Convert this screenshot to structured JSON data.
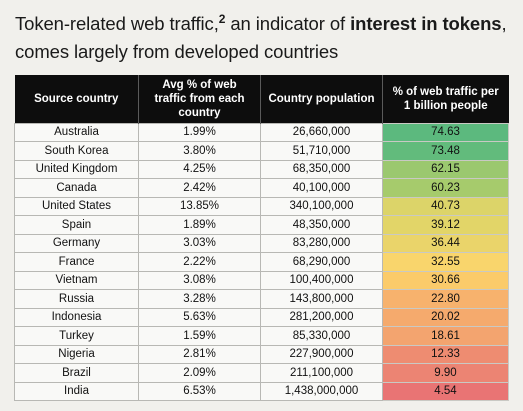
{
  "title": {
    "part1": "Token-related web traffic,",
    "superscript": "2",
    "part2": " an indicator of ",
    "bold": "interest in tokens",
    "part3": ",",
    "line2": "comes largely from developed countries"
  },
  "table": {
    "headers": {
      "country": "Source country",
      "avg_traffic": "Avg % of web traffic from each country",
      "population": "Country population",
      "per_billion": "% of web traffic per 1 billion people"
    },
    "rows": [
      {
        "country": "Australia",
        "avg": "1.99%",
        "population": "26,660,000",
        "per_billion": "74.63",
        "color": "#5cb97e"
      },
      {
        "country": "South Korea",
        "avg": "3.80%",
        "population": "51,710,000",
        "per_billion": "73.48",
        "color": "#62bb7c"
      },
      {
        "country": "United Kingdom",
        "avg": "4.25%",
        "population": "68,350,000",
        "per_billion": "62.15",
        "color": "#9bc86f"
      },
      {
        "country": "Canada",
        "avg": "2.42%",
        "population": "40,100,000",
        "per_billion": "60.23",
        "color": "#a6cb6c"
      },
      {
        "country": "United States",
        "avg": "13.85%",
        "population": "340,100,000",
        "per_billion": "40.73",
        "color": "#dcd469"
      },
      {
        "country": "Spain",
        "avg": "1.89%",
        "population": "48,350,000",
        "per_billion": "39.12",
        "color": "#e2d568"
      },
      {
        "country": "Germany",
        "avg": "3.03%",
        "population": "83,280,000",
        "per_billion": "36.44",
        "color": "#ead46a"
      },
      {
        "country": "France",
        "avg": "2.22%",
        "population": "68,290,000",
        "per_billion": "32.55",
        "color": "#f9d56c"
      },
      {
        "country": "Vietnam",
        "avg": "3.08%",
        "population": "100,400,000",
        "per_billion": "30.66",
        "color": "#fbcb6a"
      },
      {
        "country": "Russia",
        "avg": "3.28%",
        "population": "143,800,000",
        "per_billion": "22.80",
        "color": "#f7b26d"
      },
      {
        "country": "Indonesia",
        "avg": "5.63%",
        "population": "281,200,000",
        "per_billion": "20.02",
        "color": "#f5aa6d"
      },
      {
        "country": "Turkey",
        "avg": "1.59%",
        "population": "85,330,000",
        "per_billion": "18.61",
        "color": "#f3a46f"
      },
      {
        "country": "Nigeria",
        "avg": "2.81%",
        "population": "227,900,000",
        "per_billion": "12.33",
        "color": "#ee8c71"
      },
      {
        "country": "Brazil",
        "avg": "2.09%",
        "population": "211,100,000",
        "per_billion": "9.90",
        "color": "#ec8473"
      },
      {
        "country": "India",
        "avg": "6.53%",
        "population": "1,438,000,000",
        "per_billion": "4.54",
        "color": "#e97474"
      }
    ]
  }
}
